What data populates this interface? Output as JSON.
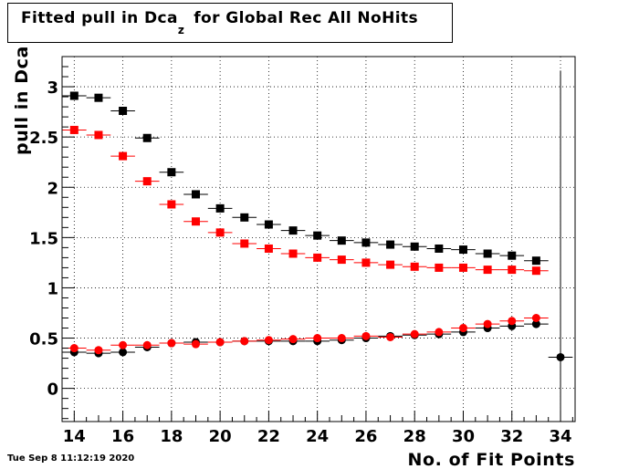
{
  "title": {
    "main": "Fitted pull in Dca",
    "subscript": "z",
    "rest": "for Global Rec All NoHits"
  },
  "footer": {
    "timestamp": "Tue Sep  8 11:12:19 2020"
  },
  "chart_data": {
    "type": "scatter",
    "xlabel": "No. of Fit Points",
    "ylabel": {
      "main": "pull in Dca",
      "subscript": "z"
    },
    "xlim": [
      13.5,
      34.6
    ],
    "ylim": [
      -0.33,
      3.3
    ],
    "x_ticks": [
      14,
      16,
      18,
      20,
      22,
      24,
      26,
      28,
      30,
      32,
      34
    ],
    "y_ticks": [
      0,
      0.5,
      1,
      1.5,
      2,
      2.5,
      3
    ],
    "y_tick_labels": [
      "0",
      "0.5",
      "1",
      "1.5",
      "2",
      "2.5",
      "3"
    ],
    "grid": true,
    "series": [
      {
        "color": "#000000",
        "marker": "square",
        "x": [
          14,
          15,
          16,
          17,
          18,
          19,
          20,
          21,
          22,
          23,
          24,
          25,
          26,
          27,
          28,
          29,
          30,
          31,
          32,
          33
        ],
        "y": [
          2.91,
          2.89,
          2.76,
          2.49,
          2.15,
          1.93,
          1.79,
          1.7,
          1.63,
          1.57,
          1.52,
          1.47,
          1.45,
          1.43,
          1.41,
          1.39,
          1.38,
          1.34,
          1.32,
          1.27
        ]
      },
      {
        "color": "#ff0000",
        "marker": "square",
        "x": [
          14,
          15,
          16,
          17,
          18,
          19,
          20,
          21,
          22,
          23,
          24,
          25,
          26,
          27,
          28,
          29,
          30,
          31,
          32,
          33
        ],
        "y": [
          2.57,
          2.52,
          2.31,
          2.06,
          1.83,
          1.66,
          1.55,
          1.44,
          1.39,
          1.34,
          1.3,
          1.28,
          1.25,
          1.23,
          1.21,
          1.2,
          1.2,
          1.18,
          1.18,
          1.17
        ]
      },
      {
        "color": "#000000",
        "marker": "circle",
        "x": [
          14,
          15,
          16,
          17,
          18,
          19,
          20,
          21,
          22,
          23,
          24,
          25,
          26,
          27,
          28,
          29,
          30,
          31,
          32,
          33,
          34
        ],
        "y": [
          0.36,
          0.35,
          0.36,
          0.41,
          0.45,
          0.46,
          0.46,
          0.47,
          0.47,
          0.47,
          0.47,
          0.48,
          0.5,
          0.52,
          0.53,
          0.54,
          0.56,
          0.6,
          0.62,
          0.64,
          0.31
        ],
        "y_errors": [
          0,
          0,
          0,
          0,
          0,
          0,
          0,
          0,
          0,
          0,
          0,
          0,
          0,
          0,
          0,
          0,
          0,
          0,
          0,
          0,
          2.85
        ]
      },
      {
        "color": "#ff0000",
        "marker": "circle",
        "x": [
          14,
          15,
          16,
          17,
          18,
          19,
          20,
          21,
          22,
          23,
          24,
          25,
          26,
          27,
          28,
          29,
          30,
          31,
          32,
          33
        ],
        "y": [
          0.4,
          0.38,
          0.43,
          0.43,
          0.45,
          0.44,
          0.46,
          0.47,
          0.48,
          0.49,
          0.5,
          0.5,
          0.52,
          0.51,
          0.54,
          0.56,
          0.6,
          0.64,
          0.67,
          0.7
        ]
      }
    ]
  }
}
